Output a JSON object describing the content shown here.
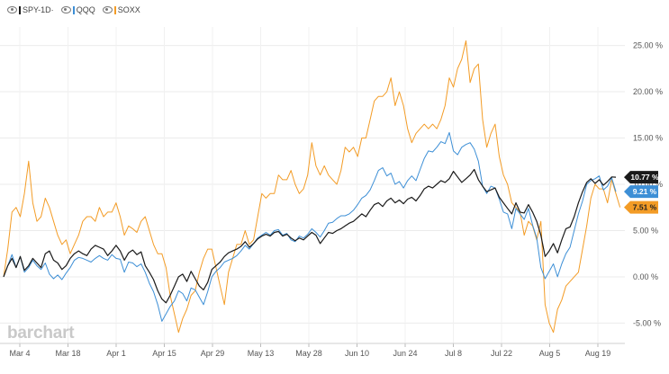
{
  "legend": [
    {
      "label": "SPY-1D·",
      "color": "#1a1a1a"
    },
    {
      "label": "QQQ",
      "color": "#3d8fd6"
    },
    {
      "label": "SOXX",
      "color": "#f39c26"
    }
  ],
  "watermark": "barchart",
  "chart_data": {
    "type": "line",
    "x_tick_labels": [
      "Mar 4",
      "Mar 18",
      "Apr 1",
      "Apr 15",
      "Apr 29",
      "May 13",
      "May 28",
      "Jun 10",
      "Jun 24",
      "Jul 8",
      "Jul 22",
      "Aug 5",
      "Aug 19"
    ],
    "y_tick_labels": [
      "25.00 %",
      "20.00 %",
      "15.00 %",
      "10.00 %",
      "5.00 %",
      "0.00 %",
      "-5.00 %"
    ],
    "y_ticks": [
      25,
      20,
      15,
      10,
      5,
      0,
      -5
    ],
    "ylim": [
      -7,
      27
    ],
    "grid": true,
    "legend_position": "top-left",
    "series": [
      {
        "name": "SPY-1D·",
        "color": "#1a1a1a",
        "last_label": "10.77 %",
        "values": [
          0,
          1.2,
          2.0,
          1.0,
          2.2,
          0.7,
          1.2,
          2.0,
          1.5,
          1.0,
          2.5,
          2.8,
          1.8,
          1.5,
          0.8,
          1.2,
          2.0,
          2.5,
          2.8,
          2.5,
          2.3,
          3.0,
          3.4,
          3.2,
          3.0,
          2.3,
          2.8,
          3.4,
          2.8,
          1.8,
          2.6,
          2.9,
          2.4,
          2.7,
          1.2,
          0.5,
          -0.3,
          -1.5,
          -2.4,
          -2.8,
          -2.0,
          -1.0,
          0.0,
          0.3,
          -0.5,
          0.6,
          -0.2,
          -1.0,
          -1.4,
          -0.6,
          0.8,
          1.2,
          1.6,
          2.2,
          2.6,
          2.8,
          3.0,
          3.3,
          3.8,
          3.2,
          3.6,
          4.1,
          4.4,
          4.6,
          4.4,
          4.8,
          4.9,
          4.4,
          4.6,
          4.2,
          3.9,
          4.2,
          4.0,
          4.4,
          4.8,
          4.5,
          3.6,
          4.2,
          4.8,
          4.7,
          5.0,
          5.2,
          5.5,
          5.8,
          6.0,
          6.4,
          6.8,
          6.5,
          7.2,
          7.8,
          8.0,
          7.6,
          8.2,
          8.5,
          8.0,
          8.3,
          7.9,
          8.4,
          8.6,
          8.2,
          8.8,
          9.5,
          9.8,
          9.6,
          10.0,
          10.4,
          10.2,
          10.6,
          11.4,
          10.8,
          10.2,
          10.6,
          11.0,
          11.6,
          10.5,
          9.8,
          9.2,
          9.4,
          9.6,
          8.6,
          8.0,
          7.4,
          6.8,
          8.0,
          7.0,
          6.9,
          7.8,
          7.0,
          6.0,
          4.5,
          2.2,
          2.8,
          3.6,
          2.6,
          4.0,
          5.2,
          5.4,
          6.5,
          8.0,
          9.2,
          10.2,
          10.6,
          10.1,
          10.5,
          9.9,
          10.3,
          10.8,
          10.77
        ]
      },
      {
        "name": "QQQ",
        "color": "#3d8fd6",
        "last_label": "9.21 %",
        "values": [
          0,
          1.2,
          2.4,
          1.0,
          2.2,
          0.5,
          1.0,
          1.8,
          1.2,
          0.8,
          1.5,
          0.3,
          -0.2,
          0.2,
          -0.3,
          0.4,
          1.0,
          1.8,
          2.1,
          2.0,
          1.8,
          1.6,
          2.0,
          2.3,
          2.0,
          1.8,
          2.4,
          2.0,
          1.9,
          0.5,
          1.6,
          1.5,
          1.1,
          1.4,
          0.5,
          -0.7,
          -1.6,
          -3.0,
          -4.8,
          -4.0,
          -3.2,
          -2.6,
          -1.5,
          -1.8,
          -2.6,
          -1.2,
          -1.4,
          -2.2,
          -3.0,
          -1.6,
          0.0,
          0.6,
          1.0,
          1.6,
          1.8,
          2.0,
          2.3,
          2.8,
          3.4,
          3.0,
          3.6,
          4.2,
          4.5,
          4.8,
          4.5,
          5.0,
          5.1,
          4.5,
          4.7,
          4.0,
          3.8,
          4.4,
          4.2,
          4.6,
          5.2,
          4.8,
          4.3,
          5.0,
          5.8,
          5.9,
          6.3,
          6.6,
          6.6,
          6.8,
          7.2,
          7.8,
          8.5,
          8.8,
          9.4,
          10.4,
          11.5,
          11.8,
          10.9,
          11.2,
          10.0,
          10.3,
          9.6,
          10.4,
          10.9,
          10.4,
          11.6,
          12.8,
          13.6,
          13.5,
          14.0,
          14.6,
          14.4,
          15.6,
          13.6,
          13.2,
          14.0,
          14.3,
          14.5,
          13.8,
          12.5,
          9.8,
          9.0,
          9.8,
          9.6,
          8.4,
          7.0,
          6.8,
          5.2,
          7.4,
          6.8,
          6.2,
          7.4,
          5.6,
          4.2,
          1.0,
          -0.2,
          0.6,
          1.4,
          0.0,
          1.4,
          2.5,
          3.2,
          5.0,
          6.8,
          8.2,
          10.0,
          10.4,
          10.6,
          10.9,
          9.4,
          9.8,
          10.7,
          9.21
        ]
      },
      {
        "name": "SOXX",
        "color": "#f39c26",
        "last_label": "7.51 %",
        "values": [
          0,
          3.0,
          7.0,
          7.5,
          6.5,
          9.0,
          12.5,
          8.0,
          6.0,
          6.5,
          8.5,
          7.5,
          6.0,
          4.5,
          3.5,
          4.0,
          2.5,
          3.5,
          4.5,
          6.0,
          6.5,
          6.5,
          6.0,
          7.5,
          6.5,
          7.0,
          7.0,
          8.0,
          6.5,
          4.5,
          5.5,
          5.2,
          4.8,
          6.0,
          6.5,
          5.0,
          3.5,
          2.5,
          2.5,
          1.0,
          -2.0,
          -4.0,
          -6.0,
          -4.5,
          -3.5,
          -2.0,
          -1.5,
          0.5,
          2.0,
          3.0,
          3.0,
          1.0,
          -1.0,
          -3.0,
          0.5,
          2.0,
          3.5,
          3.5,
          5.0,
          3.5,
          4.0,
          6.5,
          9.0,
          8.5,
          9.0,
          9.0,
          11.0,
          10.5,
          10.5,
          11.5,
          10.0,
          9.0,
          9.5,
          11.0,
          14.5,
          12.0,
          11.0,
          12.0,
          11.0,
          10.5,
          10.0,
          11.5,
          14.0,
          13.5,
          14.0,
          13.0,
          15.0,
          15.0,
          17.0,
          19.0,
          19.5,
          19.5,
          20.0,
          21.5,
          18.5,
          20.0,
          18.5,
          16.0,
          14.5,
          15.5,
          16.0,
          16.5,
          16.0,
          16.5,
          16.0,
          17.0,
          18.5,
          21.5,
          20.5,
          22.5,
          23.5,
          25.5,
          21.0,
          22.5,
          23.0,
          17.0,
          14.0,
          15.5,
          16.5,
          13.0,
          11.0,
          10.0,
          8.0,
          7.5,
          7.0,
          4.5,
          6.0,
          5.5,
          4.0,
          6.0,
          -3.0,
          -5.0,
          -6.0,
          -3.5,
          -2.5,
          -1.0,
          -0.5,
          0.0,
          0.5,
          3.0,
          5.5,
          8.5,
          10.0,
          9.5,
          9.5,
          8.0,
          10.5,
          9.0,
          7.51
        ]
      }
    ]
  }
}
